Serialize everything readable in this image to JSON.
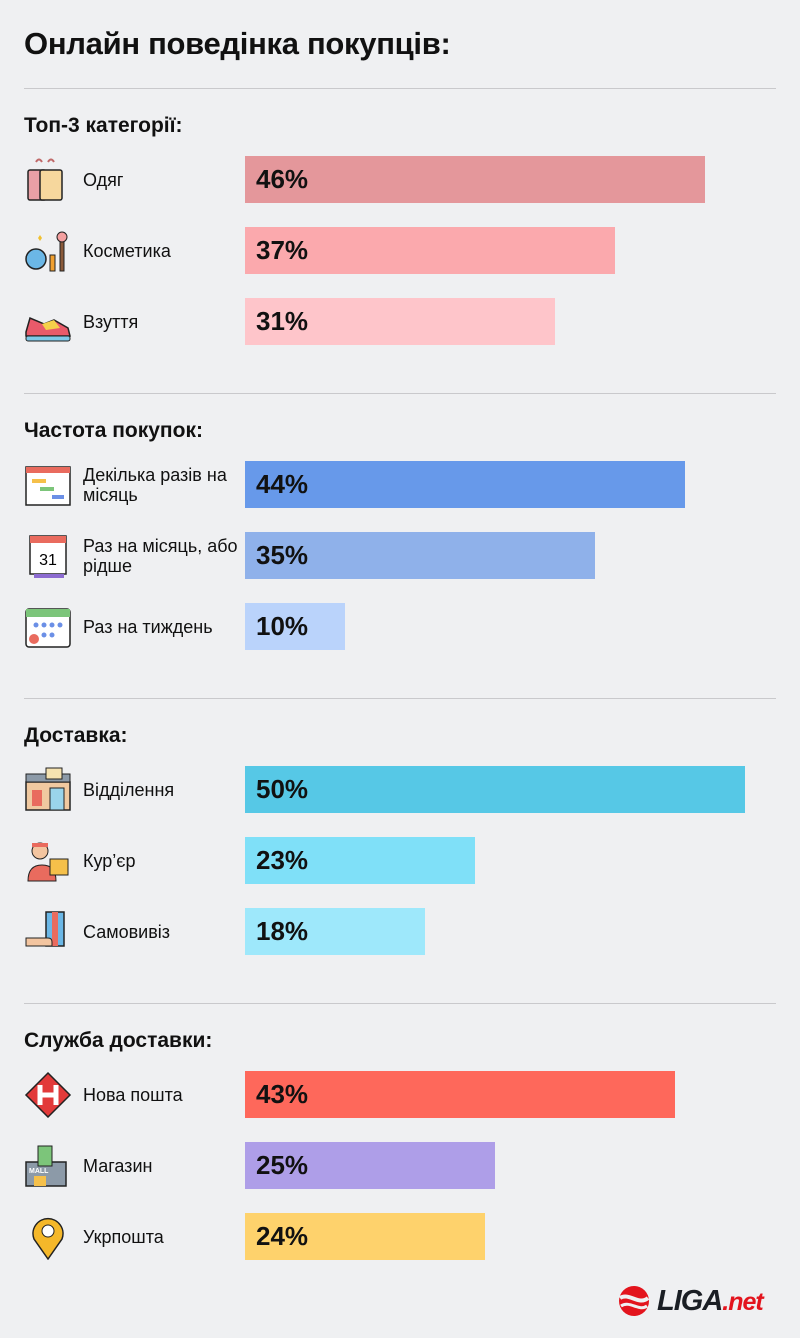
{
  "title": "Онлайн поведінка покупців:",
  "chart_data": {
    "type": "bar",
    "orientation": "horizontal",
    "unit": "%",
    "xlim": [
      0,
      50
    ],
    "groups": [
      {
        "title": "Топ-3 категорії:",
        "items": [
          {
            "label": "Одяг",
            "value": 46,
            "value_label": "46%",
            "color": "#e4979b",
            "icon": "clothes-icon"
          },
          {
            "label": "Косметика",
            "value": 37,
            "value_label": "37%",
            "color": "#fba9ad",
            "icon": "cosmetics-icon"
          },
          {
            "label": "Взуття",
            "value": 31,
            "value_label": "31%",
            "color": "#fec5ca",
            "icon": "sneaker-icon"
          }
        ]
      },
      {
        "title": "Частота покупок:",
        "items": [
          {
            "label": "Декілька разів на місяць",
            "value": 44,
            "value_label": "44%",
            "color": "#6799ea",
            "icon": "gantt-calendar-icon"
          },
          {
            "label": "Раз на місяць, або рідше",
            "value": 35,
            "value_label": "35%",
            "color": "#8fb1ea",
            "icon": "calendar-31-icon"
          },
          {
            "label": "Раз на тиждень",
            "value": 10,
            "value_label": "10%",
            "color": "#bad3fb",
            "icon": "calendar-check-icon"
          }
        ]
      },
      {
        "title": "Доставка:",
        "items": [
          {
            "label": "Відділення",
            "value": 50,
            "value_label": "50%",
            "color": "#56c8e6",
            "icon": "post-office-icon"
          },
          {
            "label": "Кур’єр",
            "value": 23,
            "value_label": "23%",
            "color": "#7fe0f8",
            "icon": "courier-icon"
          },
          {
            "label": "Самовивіз",
            "value": 18,
            "value_label": "18%",
            "color": "#9ee8fb",
            "icon": "pickup-icon"
          }
        ]
      },
      {
        "title": "Служба доставки:",
        "items": [
          {
            "label": "Нова пошта",
            "value": 43,
            "value_label": "43%",
            "color": "#fe685b",
            "icon": "nova-poshta-icon"
          },
          {
            "label": "Магазин",
            "value": 25,
            "value_label": "25%",
            "color": "#ae9ee8",
            "icon": "mall-icon"
          },
          {
            "label": "Укрпошта",
            "value": 24,
            "value_label": "24%",
            "color": "#fed26c",
            "icon": "map-pin-icon"
          }
        ]
      }
    ]
  },
  "logo": {
    "main": "LIGA",
    "suffix": ".net"
  }
}
